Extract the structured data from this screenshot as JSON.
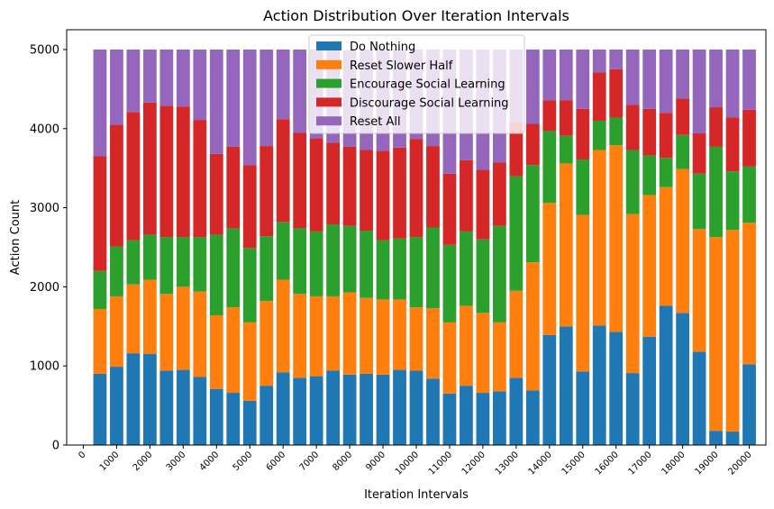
{
  "chart_data": {
    "type": "bar",
    "stacked": true,
    "title": "Action Distribution Over Iteration Intervals",
    "xlabel": "Iteration Intervals",
    "ylabel": "Action Count",
    "ylim": [
      0,
      5250
    ],
    "yticks": [
      0,
      1000,
      2000,
      3000,
      4000,
      5000
    ],
    "xtick_labels": [
      "0",
      "1000",
      "2000",
      "3000",
      "4000",
      "5000",
      "6000",
      "7000",
      "8000",
      "9000",
      "10000",
      "11000",
      "12000",
      "13000",
      "14000",
      "15000",
      "16000",
      "17000",
      "18000",
      "19000",
      "20000"
    ],
    "xlim": [
      -500,
      20500
    ],
    "x": [
      500,
      1000,
      1500,
      2000,
      2500,
      3000,
      3500,
      4000,
      4500,
      5000,
      5500,
      6000,
      6500,
      7000,
      7500,
      8000,
      8500,
      9000,
      9500,
      10000,
      10500,
      11000,
      11500,
      12000,
      12500,
      13000,
      13500,
      14000,
      14500,
      15000,
      15500,
      16000,
      16500,
      17000,
      17500,
      18000,
      18500,
      19000,
      19500,
      20000
    ],
    "bar_width": 400,
    "legend_position": "upper center",
    "series": [
      {
        "name": "Do Nothing",
        "color": "#1f77b4",
        "values": [
          900,
          990,
          1160,
          1150,
          940,
          950,
          860,
          710,
          660,
          560,
          750,
          920,
          850,
          870,
          940,
          890,
          900,
          890,
          950,
          940,
          840,
          650,
          750,
          660,
          680,
          850,
          690,
          1390,
          1500,
          930,
          1510,
          1430,
          910,
          1370,
          1760,
          1670,
          1180,
          180,
          170,
          1020
        ]
      },
      {
        "name": "Reset Slower Half",
        "color": "#ff7f0e",
        "values": [
          820,
          890,
          870,
          940,
          970,
          1050,
          1080,
          930,
          1080,
          990,
          1070,
          1170,
          1060,
          1010,
          940,
          1040,
          960,
          950,
          890,
          800,
          890,
          900,
          1010,
          1010,
          870,
          1100,
          1620,
          1670,
          2060,
          1980,
          2220,
          2360,
          2010,
          1790,
          1500,
          1820,
          1550,
          2450,
          2550,
          1790
        ]
      },
      {
        "name": "Encourage Social Learning",
        "color": "#2ca02c",
        "values": [
          480,
          630,
          560,
          570,
          720,
          630,
          690,
          1020,
          1000,
          940,
          820,
          730,
          830,
          820,
          910,
          840,
          850,
          750,
          770,
          890,
          1020,
          980,
          940,
          930,
          1220,
          1450,
          1230,
          910,
          350,
          700,
          370,
          350,
          810,
          500,
          370,
          430,
          700,
          1140,
          740,
          710
        ]
      },
      {
        "name": "Discourage Social Learning",
        "color": "#d62728",
        "values": [
          1450,
          1540,
          1620,
          1670,
          1660,
          1650,
          1480,
          1020,
          1030,
          1050,
          1140,
          1300,
          1210,
          1180,
          1030,
          1000,
          1020,
          1130,
          1150,
          1240,
          1030,
          900,
          900,
          880,
          800,
          680,
          520,
          390,
          450,
          640,
          610,
          610,
          570,
          590,
          570,
          460,
          510,
          500,
          680,
          720
        ]
      },
      {
        "name": "Reset All",
        "color": "#9467bd",
        "values": [
          1350,
          950,
          790,
          670,
          710,
          720,
          890,
          1320,
          1230,
          1460,
          1220,
          880,
          1050,
          1120,
          1180,
          1220,
          1270,
          1280,
          1240,
          1130,
          1220,
          1570,
          1400,
          1520,
          1430,
          920,
          940,
          640,
          640,
          750,
          290,
          250,
          700,
          750,
          800,
          620,
          1060,
          730,
          860,
          760
        ]
      }
    ]
  }
}
